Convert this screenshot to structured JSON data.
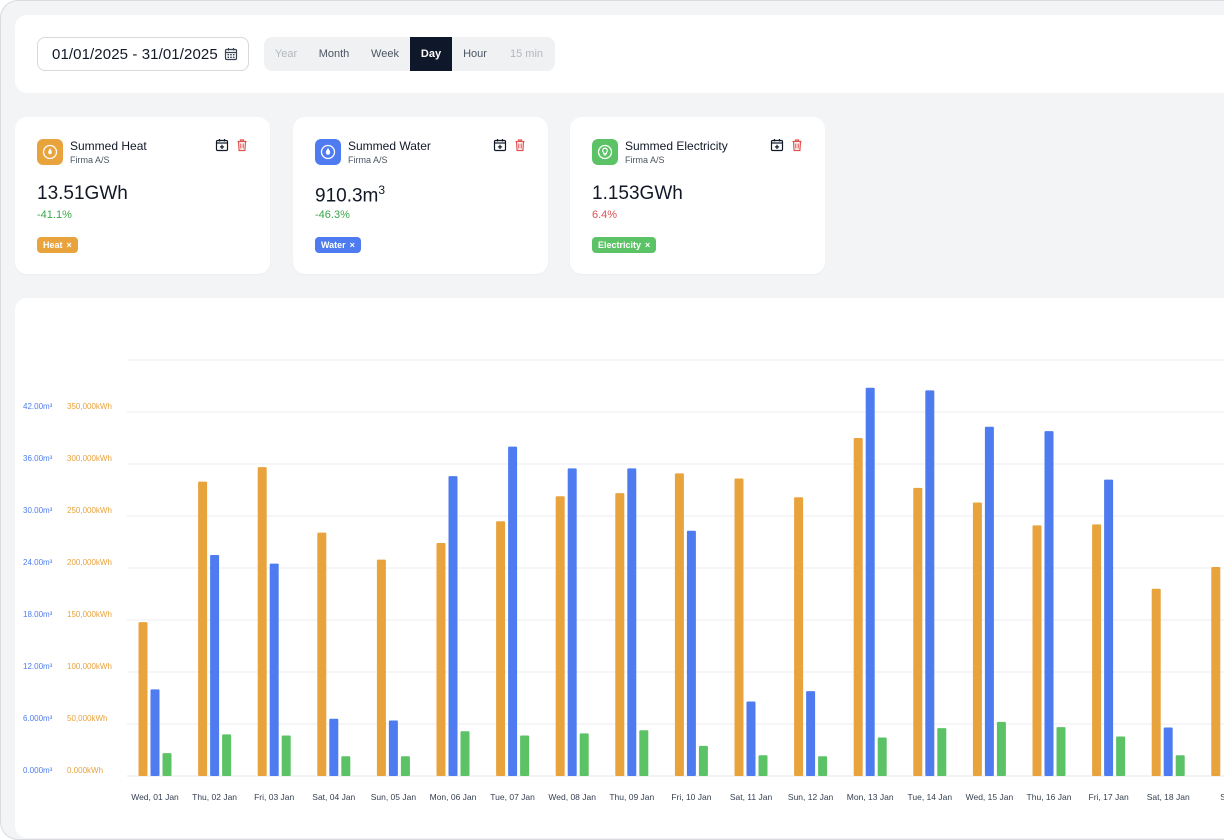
{
  "date_range": {
    "value": "01/01/2025 - 31/01/2025",
    "icon": "calendar-icon"
  },
  "granularity": {
    "options": [
      {
        "label": "Year",
        "state": "disabled"
      },
      {
        "label": "Month",
        "state": "normal"
      },
      {
        "label": "Week",
        "state": "normal"
      },
      {
        "label": "Day",
        "state": "active"
      },
      {
        "label": "Hour",
        "state": "normal"
      },
      {
        "label": "15 min",
        "state": "disabled"
      }
    ]
  },
  "cards": [
    {
      "title": "Summed Heat",
      "subtitle": "Firma A/S",
      "value": "13.51GWh",
      "change": "-41.1%",
      "change_dir": "up",
      "tag": "Heat",
      "tag_close": "×",
      "color": "#e8a33d",
      "icon": "heat-meter-icon"
    },
    {
      "title": "Summed Water",
      "subtitle": "Firma A/S",
      "value": "910.3m",
      "value_sup": "3",
      "change": "-46.3%",
      "change_dir": "up",
      "tag": "Water",
      "tag_close": "×",
      "color": "#4e7cf0",
      "icon": "water-drop-icon"
    },
    {
      "title": "Summed Electricity",
      "subtitle": "Firma A/S",
      "value": "1.153GWh",
      "change": "6.4%",
      "change_dir": "down",
      "tag": "Electricity",
      "tag_close": "×",
      "color": "#5cc266",
      "icon": "lightbulb-icon"
    }
  ],
  "card_actions": {
    "add_icon": "calendar-plus-icon",
    "delete_icon": "trash-icon"
  },
  "chart_data": {
    "type": "bar",
    "categories": [
      "Wed, 01 Jan",
      "Thu, 02 Jan",
      "Fri, 03 Jan",
      "Sat, 04 Jan",
      "Sun, 05 Jan",
      "Mon, 06 Jan",
      "Tue, 07 Jan",
      "Wed, 08 Jan",
      "Thu, 09 Jan",
      "Fri, 10 Jan",
      "Sat, 11 Jan",
      "Sun, 12 Jan",
      "Mon, 13 Jan",
      "Tue, 14 Jan",
      "Wed, 15 Jan",
      "Thu, 16 Jan",
      "Fri, 17 Jan",
      "Sat, 18 Jan",
      "Sun"
    ],
    "y_left_ticks": [
      "0.000m³",
      "6.000m³",
      "12.00m³",
      "18.00m³",
      "24.00m³",
      "30.00m³",
      "36.00m³",
      "42.00m³"
    ],
    "y_right_ticks": [
      "0.000kWh",
      "50,000kWh",
      "100,000kWh",
      "150,000kWh",
      "200,000kWh",
      "250,000kWh",
      "300,000kWh",
      "350,000kWh"
    ],
    "ylim_kwh": [
      0,
      400000
    ],
    "ylim_m3": [
      0,
      48
    ],
    "series": [
      {
        "name": "Heat",
        "axis": "kWh",
        "color": "#e8a33d",
        "values": [
          148000,
          283000,
          297000,
          234000,
          208000,
          224000,
          245000,
          269000,
          272000,
          291000,
          286000,
          268000,
          325000,
          277000,
          263000,
          241000,
          242000,
          180000,
          201000
        ]
      },
      {
        "name": "Water",
        "axis": "m3",
        "color": "#4e7cf0",
        "values": [
          10.0,
          25.5,
          24.5,
          6.6,
          6.4,
          34.6,
          38.0,
          35.5,
          35.5,
          28.3,
          8.6,
          9.8,
          44.8,
          44.5,
          40.3,
          39.8,
          34.2,
          5.6,
          null
        ]
      },
      {
        "name": "Electricity",
        "axis": "kWh",
        "color": "#5cc266",
        "values": [
          22000,
          40000,
          39000,
          19000,
          19000,
          43000,
          39000,
          41000,
          44000,
          29000,
          20000,
          19000,
          37000,
          46000,
          52000,
          47000,
          38000,
          20000,
          null
        ]
      }
    ]
  }
}
